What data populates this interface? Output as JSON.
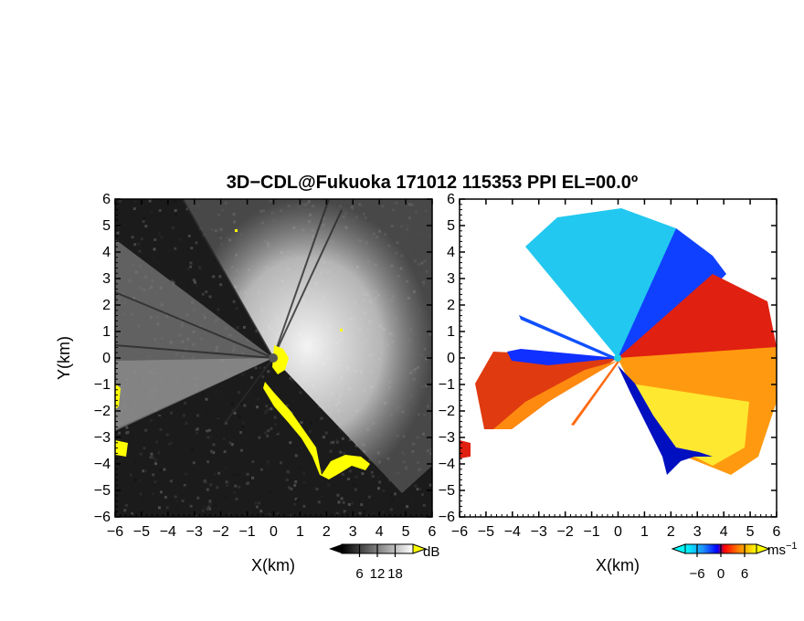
{
  "chart_data": {
    "title": "3D−CDL@Fukuoka 171012 115353 PPI EL=00.0º",
    "panels": [
      {
        "type": "heatmap",
        "field": "intensity",
        "xlabel": "X(km)",
        "ylabel": "Y(km)",
        "xlim": [
          -6,
          6
        ],
        "ylim": [
          -6,
          6
        ],
        "xticks": [
          "−6",
          "−5",
          "−4",
          "−3",
          "−2",
          "−1",
          "0",
          "1",
          "2",
          "3",
          "4",
          "5",
          "6"
        ],
        "yticks": [
          "6",
          "5",
          "4",
          "3",
          "2",
          "1",
          "0",
          "−1",
          "−2",
          "−3",
          "−4",
          "−5",
          "−6"
        ],
        "colorbar": {
          "ticks": [
            "6",
            "12",
            "18"
          ],
          "tick_values": [
            6,
            12,
            18
          ],
          "range": [
            0,
            24
          ],
          "unit": "dB",
          "colors": [
            "#000000",
            "#ffffff"
          ],
          "over_color": "#ffff00"
        },
        "background": "#1a1a1a"
      },
      {
        "type": "heatmap",
        "field": "radial_velocity",
        "xlabel": "X(km)",
        "xlim": [
          -6,
          6
        ],
        "ylim": [
          -6,
          6
        ],
        "xticks": [
          "−6",
          "−5",
          "−4",
          "−3",
          "−2",
          "−1",
          "0",
          "1",
          "2",
          "3",
          "4",
          "5",
          "6"
        ],
        "yticks": [
          "6",
          "5",
          "4",
          "3",
          "2",
          "1",
          "0",
          "−1",
          "−2",
          "−3",
          "−4",
          "−5",
          "−6"
        ],
        "colorbar": {
          "ticks": [
            "−6",
            "0",
            "6"
          ],
          "tick_values": [
            -6,
            0,
            6
          ],
          "range": [
            -9,
            9
          ],
          "unit": "ms",
          "unit_exponent": "−1",
          "colors": [
            "#00ffff",
            "#0000ff",
            "#ff0000",
            "#ffff00"
          ]
        },
        "background": "#ffffff"
      }
    ]
  }
}
